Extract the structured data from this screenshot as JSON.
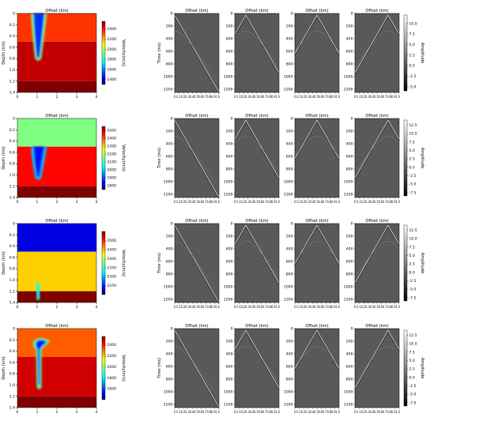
{
  "figure": {
    "velocity_axis": {
      "title": "Offset (km)",
      "xlabel": "",
      "ylabel": "Depth (km)",
      "x_ticks": [
        "0",
        "1",
        "2",
        "3",
        "4"
      ],
      "y_ticks": [
        "0",
        "0.2",
        "0.4",
        "0.6",
        "0.8",
        "1.0",
        "1.2",
        "1.4"
      ],
      "colorbar_label": "Velocity(m/s)"
    },
    "shot_axis": {
      "title": "Offset (km)",
      "ylabel": "Time (ms)",
      "x_ticks": [
        "0",
        "0.1",
        "0.2",
        "0.3",
        "0.4",
        "0.5",
        "0.6",
        "0.7",
        "0.8",
        "0.9",
        "1.0"
      ],
      "x_tick_text": "0  0.10.20.30.40.50.60.70.80.91.0",
      "y_ticks": [
        "0",
        "200",
        "400",
        "600",
        "800",
        "1000",
        "1200"
      ],
      "colorbar_label": "Amplitude"
    }
  },
  "colors": {
    "jet": [
      "#00007f",
      "#0000ff",
      "#00ffff",
      "#7fff7f",
      "#ffff00",
      "#ff7f00",
      "#ff0000",
      "#7f0000"
    ],
    "shot_background": "#595959"
  },
  "chart_data": [
    {
      "type": "heatmap",
      "row": 0,
      "colorbar_ticks": [
        1400,
        1600,
        1800,
        2000,
        2200,
        2400
      ],
      "colorbar_range": [
        1300,
        2550
      ],
      "layers": [
        {
          "depth_km": [
            0.0,
            0.5
          ],
          "velocity": 2350
        },
        {
          "depth_km": [
            0.5,
            1.2
          ],
          "velocity": 2480
        },
        {
          "depth_km": [
            1.2,
            1.4
          ],
          "velocity": 2550
        }
      ],
      "anomaly": {
        "kind": "plume",
        "x_center_km": 1.05,
        "top_km": 0.0,
        "bottom_km": 0.85,
        "velocity": 1500
      }
    },
    {
      "type": "heatmap",
      "row": 1,
      "colorbar_ticks": [
        1800,
        1900,
        2000,
        2100,
        2200,
        2300,
        2400,
        2500
      ],
      "colorbar_range": [
        1750,
        2550
      ],
      "layers": [
        {
          "depth_km": [
            0.0,
            0.5
          ],
          "velocity": 2150
        },
        {
          "depth_km": [
            0.5,
            1.2
          ],
          "velocity": 2460
        },
        {
          "depth_km": [
            1.2,
            1.4
          ],
          "velocity": 2550
        }
      ],
      "anomaly": {
        "kind": "plume",
        "x_center_km": 1.05,
        "top_km": 0.5,
        "bottom_km": 1.1,
        "velocity": 1850
      }
    },
    {
      "type": "heatmap",
      "row": 2,
      "colorbar_ticks": [
        2250,
        2300,
        2350,
        2400,
        2450,
        2500
      ],
      "colorbar_range": [
        2200,
        2550
      ],
      "layers": [
        {
          "depth_km": [
            0.0,
            0.5
          ],
          "velocity": 2230
        },
        {
          "depth_km": [
            0.5,
            1.2
          ],
          "velocity": 2440
        },
        {
          "depth_km": [
            1.2,
            1.4
          ],
          "velocity": 2550
        }
      ],
      "anomaly": {
        "kind": "spot",
        "x_center_km": 1.05,
        "top_km": 1.05,
        "bottom_km": 1.35,
        "velocity": 2330
      }
    },
    {
      "type": "heatmap",
      "row": 3,
      "colorbar_ticks": [
        1600,
        1800,
        2000,
        2200,
        2400
      ],
      "colorbar_range": [
        1400,
        2550
      ],
      "layers": [
        {
          "depth_km": [
            0.0,
            0.5
          ],
          "velocity": 2320
        },
        {
          "depth_km": [
            0.5,
            1.2
          ],
          "velocity": 2470
        },
        {
          "depth_km": [
            1.2,
            1.4
          ],
          "velocity": 2550
        }
      ],
      "anomaly": {
        "kind": "plume-wide",
        "x_center_km": 1.1,
        "top_km": 0.15,
        "bottom_km": 1.1,
        "velocity": 1550
      }
    },
    {
      "type": "shot_gathers",
      "row": 0,
      "apex_offset_km": [
        0.0,
        0.25,
        0.5,
        0.75
      ],
      "apex_time_ms": 30,
      "colorbar_ticks": [
        10.0,
        7.5,
        5.0,
        2.5,
        0.0,
        -2.5,
        -5.0
      ],
      "colorbar_labels": [
        "10.0",
        "7.5",
        "5.0",
        "2.5",
        "0.0",
        "-2.5",
        "-5.0"
      ],
      "colorbar_range": [
        -6,
        12
      ]
    },
    {
      "type": "shot_gathers",
      "row": 1,
      "apex_offset_km": [
        0.0,
        0.25,
        0.5,
        0.75
      ],
      "apex_time_ms": 30,
      "colorbar_ticks": [
        12.5,
        10.0,
        7.5,
        5.0,
        2.5,
        0.0,
        -2.5,
        -5.0,
        -7.5
      ],
      "colorbar_labels": [
        "12.5",
        "10.0",
        "7.5",
        "5.0",
        "2.5",
        "0.0",
        "-2.5",
        "-5.0",
        "-7.5"
      ],
      "colorbar_range": [
        -8.5,
        14
      ]
    },
    {
      "type": "shot_gathers",
      "row": 2,
      "apex_offset_km": [
        0.0,
        0.25,
        0.5,
        0.75
      ],
      "apex_time_ms": 30,
      "colorbar_ticks": [
        12.5,
        10.0,
        7.5,
        5.0,
        2.5,
        0.0,
        -2.5,
        -5.0,
        -7.5
      ],
      "colorbar_labels": [
        "12.5",
        "10.0",
        "7.5",
        "5.0",
        "2.5",
        "0.0",
        "-2.5",
        "-5.0",
        "-7.5"
      ],
      "colorbar_range": [
        -8.5,
        14
      ]
    },
    {
      "type": "shot_gathers",
      "row": 3,
      "apex_offset_km": [
        0.0,
        0.25,
        0.5,
        0.75
      ],
      "apex_time_ms": 30,
      "colorbar_ticks": [
        12.5,
        10.0,
        7.5,
        5.0,
        2.5,
        0.0,
        -2.5,
        -5.0,
        -7.5
      ],
      "colorbar_labels": [
        "12.5",
        "10.0",
        "7.5",
        "5.0",
        "2.5",
        "0.0",
        "-2.5",
        "-5.0",
        "-7.5"
      ],
      "colorbar_range": [
        -8.5,
        14
      ]
    }
  ]
}
